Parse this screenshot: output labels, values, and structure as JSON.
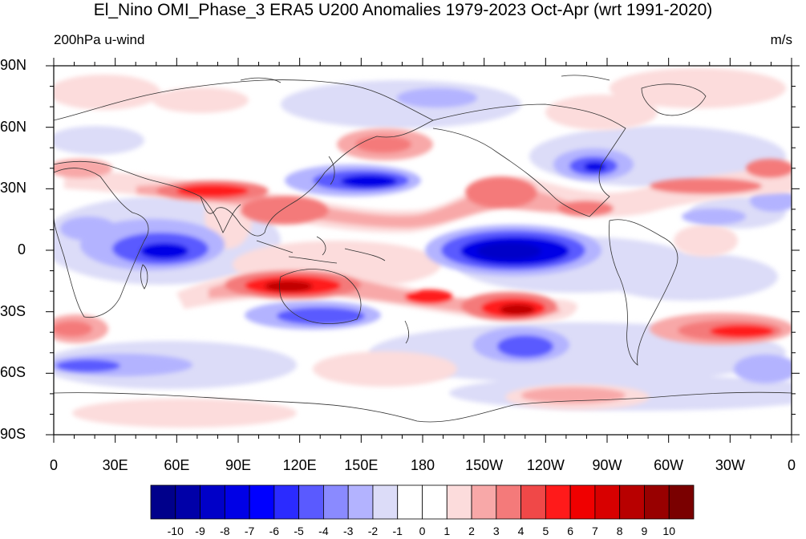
{
  "title": "El_Nino OMI_Phase_3 ERA5 U200 Anomalies 1979-2023 Oct-Apr (wrt 1991-2020)",
  "subtitle_left": "200hPa u-wind",
  "subtitle_right": "m/s",
  "lat_labels": [
    "90N",
    "60N",
    "30N",
    "0",
    "30S",
    "60S",
    "90S"
  ],
  "lon_labels": [
    "0",
    "30E",
    "60E",
    "90E",
    "120E",
    "150E",
    "180",
    "150W",
    "120W",
    "90W",
    "60W",
    "30W",
    "0"
  ],
  "colorbar": {
    "labels": [
      "-10",
      "-9",
      "-8",
      "-7",
      "-6",
      "-5",
      "-4",
      "-3",
      "-2",
      "-1",
      "0",
      "1",
      "2",
      "3",
      "4",
      "5",
      "6",
      "7",
      "8",
      "9",
      "10"
    ],
    "colors": [
      "#00008b",
      "#0000a8",
      "#0000c8",
      "#0000e6",
      "#0000ff",
      "#2b2bff",
      "#5a5aff",
      "#8a8aff",
      "#b3b3ff",
      "#dcdcf8",
      "#ffffff",
      "#ffffff",
      "#fcdcdc",
      "#f8a8a8",
      "#f47a7a",
      "#f04848",
      "#ff1a1a",
      "#f00000",
      "#d80000",
      "#b80000",
      "#980000",
      "#7a0000"
    ]
  },
  "colors": {
    "neg_strong": "#0000e6",
    "neg_mid": "#5a5aff",
    "neg_weak": "#b3b3ff",
    "neg_faint": "#dcdcf8",
    "pos_faint": "#fcdcdc",
    "pos_weak": "#f8a8a8",
    "pos_mid": "#f47a7a",
    "pos_strong": "#ff1a1a",
    "pos_deep": "#c00000"
  }
}
